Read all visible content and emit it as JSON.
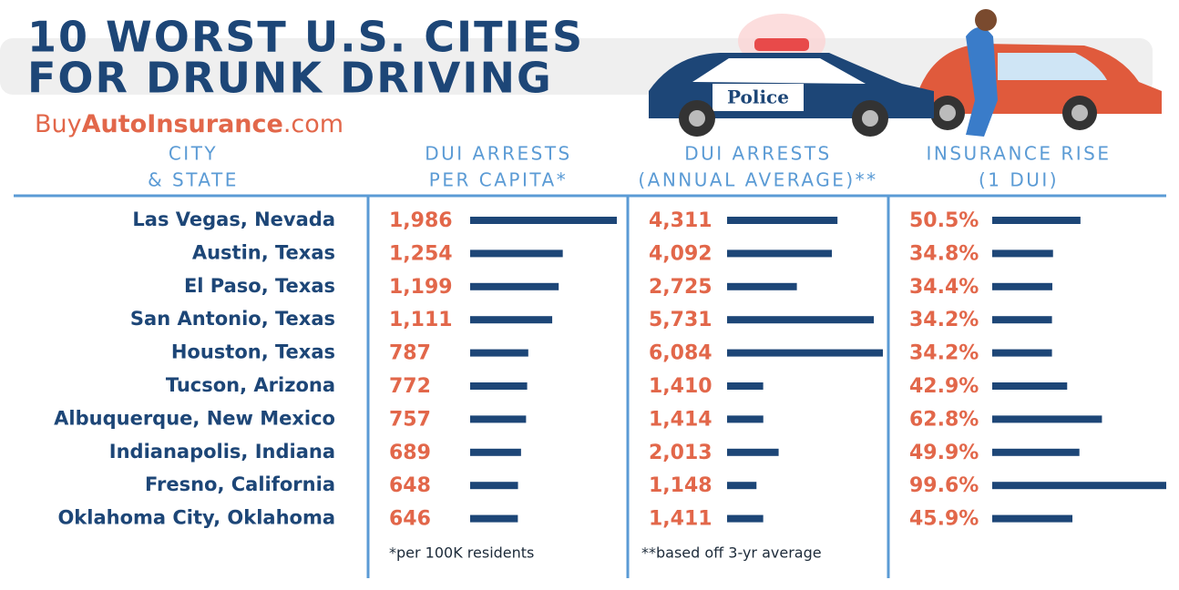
{
  "header": {
    "title": [
      "10 WORST U.S. CITIES",
      "FOR DRUNK DRIVING"
    ],
    "brand": [
      "Buy",
      "AutoInsurance",
      ".com"
    ],
    "police_sign": "Police"
  },
  "table": {
    "city_header": [
      "CITY",
      "& STATE"
    ],
    "cities": [
      "Las Vegas, Nevada",
      "Austin, Texas",
      "El Paso, Texas",
      "San Antonio, Texas",
      "Houston, Texas",
      "Tucson, Arizona",
      "Albuquerque, New Mexico",
      "Indianapolis, Indiana",
      "Fresno, California",
      "Oklahoma City, Oklahoma"
    ],
    "columns": [
      {
        "header": [
          "DUI ARRESTS",
          "PER CAPITA*"
        ],
        "values": [
          1986,
          1254,
          1199,
          1111,
          787,
          772,
          757,
          689,
          648,
          646
        ],
        "value_labels": [
          "1,986",
          "1,254",
          "1,199",
          "1,111",
          "787",
          "772",
          "757",
          "689",
          "648",
          "646"
        ],
        "note": "*per 100K residents"
      },
      {
        "header": [
          "DUI ARRESTS",
          "(ANNUAL AVERAGE)**"
        ],
        "values": [
          4311,
          4092,
          2725,
          5731,
          6084,
          1410,
          1414,
          2013,
          1148,
          1411
        ],
        "value_labels": [
          "4,311",
          "4,092",
          "2,725",
          "5,731",
          "6,084",
          "1,410",
          "1,414",
          "2,013",
          "1,148",
          "1,411"
        ],
        "note": "**based off 3-yr average"
      },
      {
        "header": [
          "INSURANCE RISE",
          "(1 DUI)"
        ],
        "values": [
          50.5,
          34.8,
          34.4,
          34.2,
          34.2,
          42.9,
          62.8,
          49.9,
          99.6,
          45.9
        ],
        "value_labels": [
          "50.5%",
          "34.8%",
          "34.4%",
          "34.2%",
          "34.2%",
          "42.9%",
          "62.8%",
          "49.9%",
          "99.6%",
          "45.9%"
        ]
      }
    ],
    "bar_color": "#1d4677"
  }
}
